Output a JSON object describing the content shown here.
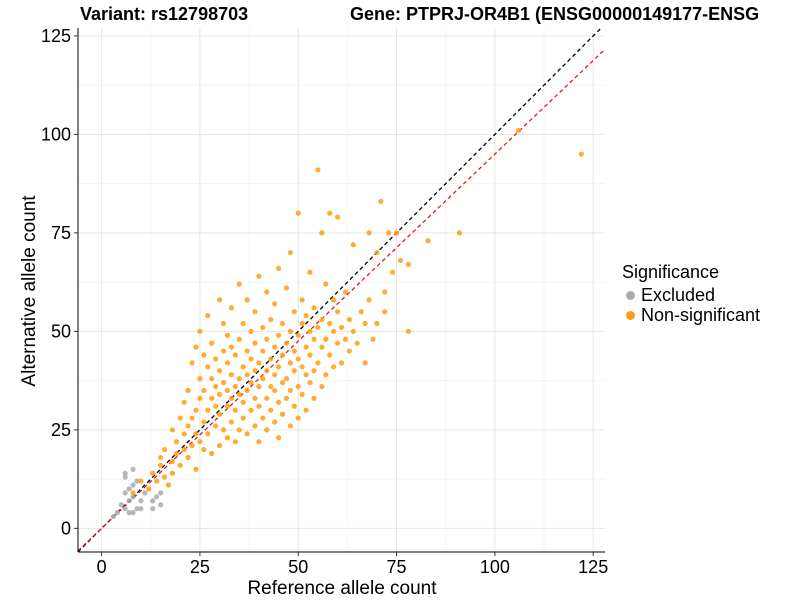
{
  "titles": {
    "variant": "Variant: rs12798703",
    "gene": "Gene: PTPRJ-OR4B1 (ENSG00000149177-ENSG"
  },
  "legend": {
    "title": "Significance",
    "items": [
      {
        "label": "Excluded",
        "color": "#aaaaaa"
      },
      {
        "label": "Non-significant",
        "color": "#ff9d12"
      }
    ]
  },
  "chart_data": {
    "type": "scatter",
    "xlabel": "Reference allele count",
    "ylabel": "Alternative allele count",
    "xlim": [
      -6,
      128
    ],
    "ylim": [
      -6,
      127
    ],
    "xticks": [
      0,
      25,
      50,
      75,
      100,
      125
    ],
    "yticks": [
      0,
      25,
      50,
      75,
      100,
      125
    ],
    "grid": true,
    "legend_position": "right",
    "reference_lines": [
      {
        "name": "identity",
        "slope": 1.0,
        "intercept": 0,
        "color": "#000000",
        "dash": "dashed"
      },
      {
        "name": "fit",
        "slope": 0.95,
        "intercept": 0,
        "color": "#e41a1c",
        "dash": "dashed"
      }
    ],
    "series": [
      {
        "name": "Excluded",
        "color": "#aaaaaa",
        "points": [
          [
            3,
            3
          ],
          [
            4,
            4
          ],
          [
            5,
            6
          ],
          [
            6,
            5
          ],
          [
            6,
            9
          ],
          [
            6,
            13
          ],
          [
            6,
            14
          ],
          [
            7,
            4
          ],
          [
            7,
            7
          ],
          [
            7,
            10
          ],
          [
            8,
            4
          ],
          [
            8,
            8
          ],
          [
            8,
            11
          ],
          [
            8,
            15
          ],
          [
            9,
            5
          ],
          [
            9,
            12
          ],
          [
            10,
            5
          ],
          [
            10,
            7
          ],
          [
            11,
            9
          ],
          [
            13,
            5
          ],
          [
            13,
            7
          ],
          [
            14,
            8
          ],
          [
            15,
            6
          ],
          [
            15,
            9
          ]
        ]
      },
      {
        "name": "Non-significant",
        "color": "#ff9d12",
        "points": [
          [
            8,
            9
          ],
          [
            10,
            12
          ],
          [
            12,
            10
          ],
          [
            13,
            14
          ],
          [
            14,
            12
          ],
          [
            15,
            16
          ],
          [
            15,
            18
          ],
          [
            16,
            13
          ],
          [
            16,
            20
          ],
          [
            17,
            11
          ],
          [
            18,
            14
          ],
          [
            18,
            17
          ],
          [
            18,
            25
          ],
          [
            19,
            19
          ],
          [
            19,
            22
          ],
          [
            20,
            16
          ],
          [
            20,
            28
          ],
          [
            21,
            20
          ],
          [
            21,
            24
          ],
          [
            21,
            32
          ],
          [
            22,
            18
          ],
          [
            22,
            26
          ],
          [
            22,
            35
          ],
          [
            23,
            21
          ],
          [
            23,
            28
          ],
          [
            23,
            42
          ],
          [
            24,
            15
          ],
          [
            24,
            24
          ],
          [
            24,
            30
          ],
          [
            24,
            46
          ],
          [
            25,
            22
          ],
          [
            25,
            33
          ],
          [
            25,
            38
          ],
          [
            25,
            50
          ],
          [
            26,
            20
          ],
          [
            26,
            27
          ],
          [
            26,
            35
          ],
          [
            26,
            44
          ],
          [
            27,
            24
          ],
          [
            27,
            30
          ],
          [
            27,
            41
          ],
          [
            27,
            54
          ],
          [
            28,
            19
          ],
          [
            28,
            33
          ],
          [
            28,
            38
          ],
          [
            28,
            47
          ],
          [
            29,
            26
          ],
          [
            29,
            31
          ],
          [
            29,
            36
          ],
          [
            29,
            43
          ],
          [
            30,
            21
          ],
          [
            30,
            29
          ],
          [
            30,
            34
          ],
          [
            30,
            40
          ],
          [
            30,
            58
          ],
          [
            31,
            25
          ],
          [
            31,
            37
          ],
          [
            31,
            45
          ],
          [
            31,
            52
          ],
          [
            32,
            23
          ],
          [
            32,
            31
          ],
          [
            32,
            35
          ],
          [
            32,
            42
          ],
          [
            32,
            49
          ],
          [
            33,
            27
          ],
          [
            33,
            33
          ],
          [
            33,
            39
          ],
          [
            33,
            46
          ],
          [
            33,
            56
          ],
          [
            34,
            22
          ],
          [
            34,
            30
          ],
          [
            34,
            36
          ],
          [
            34,
            44
          ],
          [
            35,
            25
          ],
          [
            35,
            34
          ],
          [
            35,
            38
          ],
          [
            35,
            48
          ],
          [
            35,
            62
          ],
          [
            36,
            28
          ],
          [
            36,
            32
          ],
          [
            36,
            41
          ],
          [
            36,
            52
          ],
          [
            37,
            24
          ],
          [
            37,
            35
          ],
          [
            37,
            39
          ],
          [
            37,
            45
          ],
          [
            37,
            58
          ],
          [
            38,
            30
          ],
          [
            38,
            37
          ],
          [
            38,
            43
          ],
          [
            38,
            50
          ],
          [
            39,
            26
          ],
          [
            39,
            33
          ],
          [
            39,
            40
          ],
          [
            39,
            47
          ],
          [
            39,
            55
          ],
          [
            40,
            22
          ],
          [
            40,
            31
          ],
          [
            40,
            36
          ],
          [
            40,
            42
          ],
          [
            40,
            64
          ],
          [
            41,
            28
          ],
          [
            41,
            38
          ],
          [
            41,
            45
          ],
          [
            41,
            51
          ],
          [
            42,
            25
          ],
          [
            42,
            33
          ],
          [
            42,
            40
          ],
          [
            42,
            48
          ],
          [
            42,
            60
          ],
          [
            43,
            30
          ],
          [
            43,
            36
          ],
          [
            43,
            43
          ],
          [
            43,
            53
          ],
          [
            44,
            27
          ],
          [
            44,
            35
          ],
          [
            44,
            39
          ],
          [
            44,
            46
          ],
          [
            44,
            57
          ],
          [
            45,
            23
          ],
          [
            45,
            32
          ],
          [
            45,
            41
          ],
          [
            45,
            49
          ],
          [
            45,
            66
          ],
          [
            46,
            29
          ],
          [
            46,
            37
          ],
          [
            46,
            44
          ],
          [
            46,
            52
          ],
          [
            47,
            33
          ],
          [
            47,
            38
          ],
          [
            47,
            47
          ],
          [
            47,
            61
          ],
          [
            48,
            26
          ],
          [
            48,
            35
          ],
          [
            48,
            42
          ],
          [
            48,
            50
          ],
          [
            48,
            70
          ],
          [
            49,
            31
          ],
          [
            49,
            40
          ],
          [
            49,
            45
          ],
          [
            49,
            55
          ],
          [
            50,
            28
          ],
          [
            50,
            36
          ],
          [
            50,
            43
          ],
          [
            50,
            49
          ],
          [
            50,
            80
          ],
          [
            51,
            34
          ],
          [
            51,
            41
          ],
          [
            51,
            52
          ],
          [
            51,
            58
          ],
          [
            52,
            30
          ],
          [
            52,
            39
          ],
          [
            52,
            46
          ],
          [
            52,
            54
          ],
          [
            53,
            37
          ],
          [
            53,
            44
          ],
          [
            53,
            50
          ],
          [
            53,
            65
          ],
          [
            54,
            33
          ],
          [
            54,
            40
          ],
          [
            54,
            48
          ],
          [
            54,
            56
          ],
          [
            55,
            42
          ],
          [
            55,
            51
          ],
          [
            55,
            91
          ],
          [
            56,
            36
          ],
          [
            56,
            46
          ],
          [
            56,
            53
          ],
          [
            56,
            75
          ],
          [
            57,
            39
          ],
          [
            57,
            48
          ],
          [
            57,
            62
          ],
          [
            58,
            44
          ],
          [
            58,
            52
          ],
          [
            58,
            80
          ],
          [
            59,
            41
          ],
          [
            59,
            50
          ],
          [
            59,
            58
          ],
          [
            60,
            47
          ],
          [
            60,
            55
          ],
          [
            60,
            79
          ],
          [
            61,
            42
          ],
          [
            61,
            51
          ],
          [
            62,
            48
          ],
          [
            62,
            60
          ],
          [
            63,
            45
          ],
          [
            63,
            53
          ],
          [
            64,
            50
          ],
          [
            64,
            72
          ],
          [
            65,
            47
          ],
          [
            66,
            55
          ],
          [
            67,
            42
          ],
          [
            67,
            52
          ],
          [
            68,
            58
          ],
          [
            68,
            75
          ],
          [
            69,
            48
          ],
          [
            70,
            70
          ],
          [
            70,
            52
          ],
          [
            71,
            83
          ],
          [
            72,
            55
          ],
          [
            72,
            60
          ],
          [
            73,
            75
          ],
          [
            74,
            65
          ],
          [
            75,
            75
          ],
          [
            76,
            68
          ],
          [
            78,
            50
          ],
          [
            78,
            67
          ],
          [
            83,
            73
          ],
          [
            91,
            75
          ],
          [
            106,
            101
          ],
          [
            122,
            95
          ]
        ]
      }
    ]
  }
}
